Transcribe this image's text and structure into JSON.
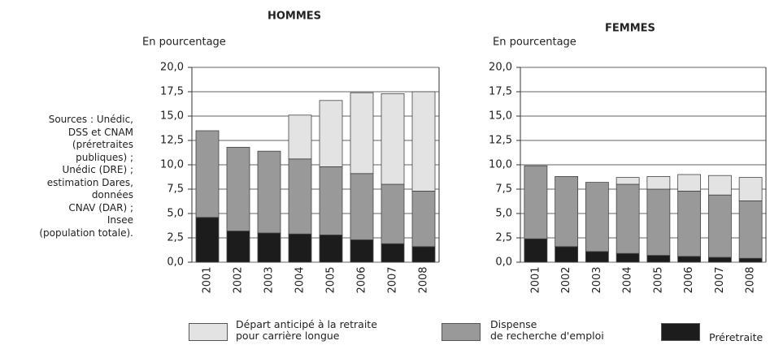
{
  "sources": "Sources : Unédic,\nDSS et CNAM\n(préretraites\npubliques) ;\nUnédic (DRE) ;\nestimation Dares,\ndonnées\nCNAV (DAR) ;\nInsee\n(population totale).",
  "legend": [
    {
      "name": "Départ anticipé à la retraite\npour carrière longue",
      "color": "#e3e3e3"
    },
    {
      "name": "Dispense\nde recherche d'emploi",
      "color": "#999999"
    },
    {
      "name": "Préretraite",
      "color": "#1c1c1c"
    }
  ],
  "chart_data": [
    {
      "type": "stacked-bar",
      "title": "HOMMES",
      "y_label": "En pourcentage",
      "categories": [
        "2001",
        "2002",
        "2003",
        "2004",
        "2005",
        "2006",
        "2007",
        "2008"
      ],
      "series": [
        {
          "values": [
            0,
            0,
            0,
            4.5,
            6.8,
            8.3,
            9.3,
            10.2
          ]
        },
        {
          "values": [
            8.9,
            8.6,
            8.4,
            7.7,
            7.0,
            6.8,
            6.1,
            5.7
          ]
        },
        {
          "values": [
            4.6,
            3.2,
            3.0,
            2.9,
            2.8,
            2.3,
            1.9,
            1.6
          ]
        }
      ],
      "ylim": [
        0,
        20
      ],
      "yticks": [
        {
          "value": 0,
          "label": "0,0"
        },
        {
          "value": 2.5,
          "label": "2,5"
        },
        {
          "value": 5,
          "label": "5,0"
        },
        {
          "value": 7.5,
          "label": "7,5"
        },
        {
          "value": 10,
          "label": "10,0"
        },
        {
          "value": 12.5,
          "label": "12,5"
        },
        {
          "value": 15,
          "label": "15,0"
        },
        {
          "value": 17.5,
          "label": "17,5"
        },
        {
          "value": 20,
          "label": "20,0"
        }
      ],
      "grid": true
    },
    {
      "type": "stacked-bar",
      "title": "FEMMES",
      "y_label": "En pourcentage",
      "categories": [
        "2001",
        "2002",
        "2003",
        "2004",
        "2005",
        "2006",
        "2007",
        "2008"
      ],
      "series": [
        {
          "values": [
            0,
            0,
            0,
            0.7,
            1.3,
            1.7,
            2.0,
            2.4
          ]
        },
        {
          "values": [
            7.5,
            7.2,
            7.1,
            7.1,
            6.8,
            6.7,
            6.4,
            5.9
          ]
        },
        {
          "values": [
            2.4,
            1.6,
            1.1,
            0.9,
            0.7,
            0.6,
            0.5,
            0.4
          ]
        }
      ],
      "ylim": [
        0,
        20
      ],
      "yticks": [
        {
          "value": 0,
          "label": "0,0"
        },
        {
          "value": 2.5,
          "label": "2,5"
        },
        {
          "value": 5,
          "label": "5,0"
        },
        {
          "value": 7.5,
          "label": "7,5"
        },
        {
          "value": 10,
          "label": "10,0"
        },
        {
          "value": 12.5,
          "label": "12,5"
        },
        {
          "value": 15,
          "label": "15,0"
        },
        {
          "value": 17.5,
          "label": "17,5"
        },
        {
          "value": 20,
          "label": "20,0"
        }
      ],
      "grid": true
    }
  ]
}
